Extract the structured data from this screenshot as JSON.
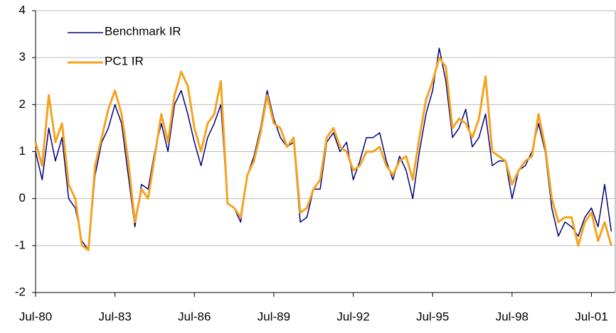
{
  "chart_data": {
    "type": "line",
    "x": [
      1980.5,
      1980.75,
      1981,
      1981.25,
      1981.5,
      1981.75,
      1982,
      1982.25,
      1982.5,
      1982.75,
      1983,
      1983.25,
      1983.5,
      1983.75,
      1984,
      1984.25,
      1984.5,
      1984.75,
      1985,
      1985.25,
      1985.5,
      1985.75,
      1986,
      1986.25,
      1986.5,
      1986.75,
      1987,
      1987.25,
      1987.5,
      1987.75,
      1988,
      1988.25,
      1988.5,
      1988.75,
      1989,
      1989.25,
      1989.5,
      1989.75,
      1990,
      1990.25,
      1990.5,
      1990.75,
      1991,
      1991.25,
      1991.5,
      1991.75,
      1992,
      1992.25,
      1992.5,
      1992.75,
      1993,
      1993.25,
      1993.5,
      1993.75,
      1994,
      1994.25,
      1994.5,
      1994.75,
      1995,
      1995.25,
      1995.5,
      1995.75,
      1996,
      1996.25,
      1996.5,
      1996.75,
      1997,
      1997.25,
      1997.5,
      1997.75,
      1998,
      1998.25,
      1998.5,
      1998.75,
      1999,
      1999.25,
      1999.5,
      1999.75,
      2000,
      2000.25,
      2000.5,
      2000.75,
      2001,
      2001.25,
      2001.5,
      2001.75,
      2002,
      2002.25
    ],
    "series": [
      {
        "name": "Benchmark IR",
        "color": "#00007f",
        "values": [
          1.0,
          0.4,
          1.5,
          0.8,
          1.3,
          0.0,
          -0.2,
          -0.9,
          -1.1,
          0.5,
          1.2,
          1.5,
          2.0,
          1.6,
          0.5,
          -0.6,
          0.3,
          0.2,
          1.0,
          1.6,
          1.0,
          2.0,
          2.3,
          1.8,
          1.2,
          0.7,
          1.3,
          1.6,
          2.0,
          -0.1,
          -0.2,
          -0.5,
          0.5,
          0.9,
          1.5,
          2.3,
          1.7,
          1.3,
          1.1,
          1.2,
          -0.5,
          -0.4,
          0.2,
          0.2,
          1.2,
          1.4,
          1.0,
          1.2,
          0.4,
          0.8,
          1.3,
          1.3,
          1.4,
          0.8,
          0.4,
          0.9,
          0.6,
          0.0,
          1.0,
          1.8,
          2.3,
          3.2,
          2.5,
          1.3,
          1.5,
          1.9,
          1.1,
          1.3,
          1.8,
          0.7,
          0.8,
          0.8,
          0.0,
          0.6,
          0.7,
          1.0,
          1.6,
          1.0,
          -0.2,
          -0.8,
          -0.5,
          -0.6,
          -0.8,
          -0.4,
          -0.2,
          -0.6,
          0.3,
          -0.7
        ]
      },
      {
        "name": "PC1 IR",
        "color": "#f5a31f",
        "values": [
          1.2,
          0.7,
          2.2,
          1.2,
          1.6,
          0.3,
          0.0,
          -1.0,
          -1.1,
          0.7,
          1.3,
          1.9,
          2.3,
          1.8,
          0.8,
          -0.5,
          0.2,
          0.0,
          0.9,
          1.8,
          1.2,
          2.2,
          2.7,
          2.4,
          1.5,
          1.0,
          1.6,
          1.8,
          2.5,
          -0.1,
          -0.2,
          -0.4,
          0.5,
          0.8,
          1.4,
          2.2,
          1.6,
          1.5,
          1.1,
          1.3,
          -0.3,
          -0.2,
          0.2,
          0.4,
          1.3,
          1.5,
          1.1,
          1.0,
          0.6,
          0.7,
          1.0,
          1.0,
          1.1,
          0.7,
          0.5,
          0.8,
          0.9,
          0.4,
          1.3,
          2.1,
          2.5,
          3.0,
          2.8,
          1.5,
          1.7,
          1.6,
          1.3,
          1.7,
          2.6,
          1.0,
          0.9,
          0.8,
          0.3,
          0.6,
          0.8,
          0.9,
          1.8,
          1.1,
          0.0,
          -0.5,
          -0.4,
          -0.4,
          -1.0,
          -0.5,
          -0.3,
          -0.9,
          -0.5,
          -1.0
        ]
      }
    ],
    "xlim": [
      1980.5,
      2002.4
    ],
    "xticks": [
      {
        "value": 1980.5,
        "label": "Jul-80"
      },
      {
        "value": 1983.5,
        "label": "Jul-83"
      },
      {
        "value": 1986.5,
        "label": "Jul-86"
      },
      {
        "value": 1989.5,
        "label": "Jul-89"
      },
      {
        "value": 1992.5,
        "label": "Jul-92"
      },
      {
        "value": 1995.5,
        "label": "Jul-95"
      },
      {
        "value": 1998.5,
        "label": "Jul-98"
      },
      {
        "value": 2001.5,
        "label": "Jul-01"
      }
    ],
    "ylim": [
      -2,
      4
    ],
    "yticks": [
      -2,
      -1,
      0,
      1,
      2,
      3,
      4
    ],
    "grid": true,
    "legend": "top-left"
  }
}
